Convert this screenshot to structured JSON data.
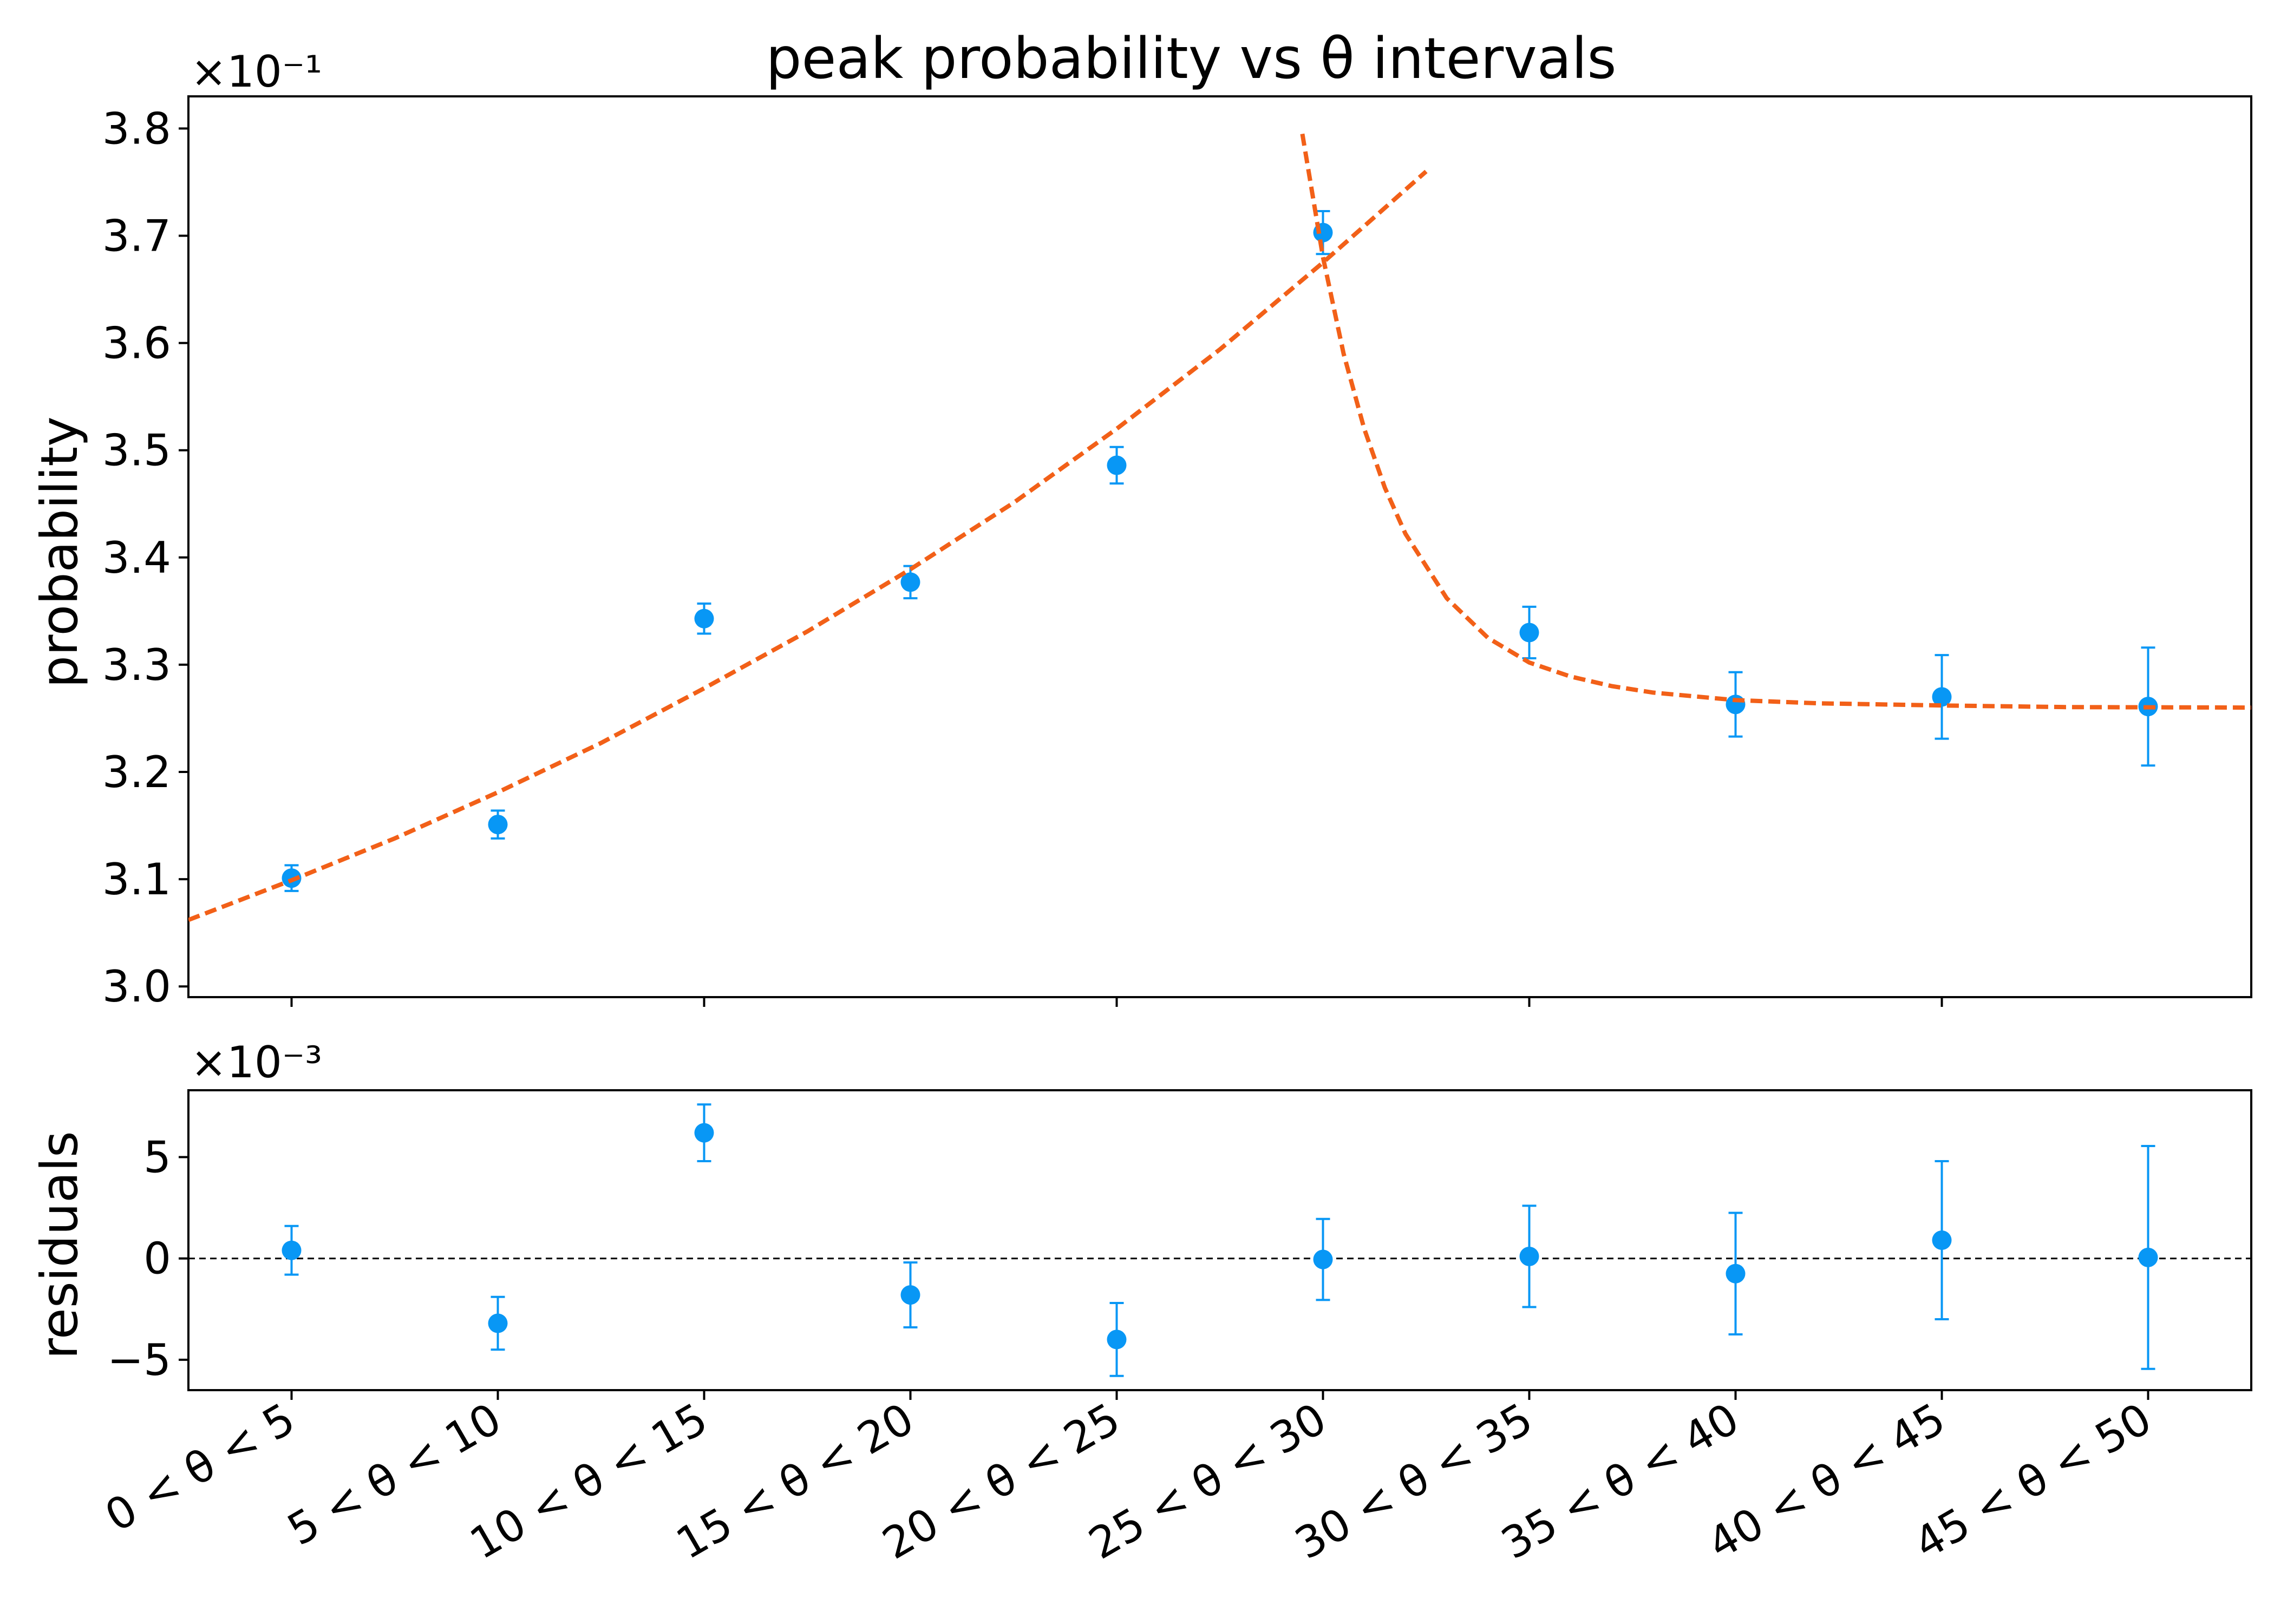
{
  "chart_data": [
    {
      "panel": "main",
      "type": "scatter",
      "title": "peak probability vs θ intervals",
      "ylabel": "probability",
      "y_offset_text": "×10⁻¹",
      "y_scale": 0.1,
      "ylim": [
        2.99,
        3.83
      ],
      "yticks": [
        3.0,
        3.1,
        3.2,
        3.3,
        3.4,
        3.5,
        3.6,
        3.7,
        3.8
      ],
      "ytick_labels": [
        "3.0",
        "3.1",
        "3.2",
        "3.3",
        "3.4",
        "3.5",
        "3.6",
        "3.7",
        "3.8"
      ],
      "xlim": [
        2.5,
        52.5
      ],
      "xticks": [
        5,
        15,
        25,
        35,
        45
      ],
      "grid": false,
      "series": [
        {
          "kind": "errorbar",
          "color": "#0897f5",
          "x": [
            5,
            10,
            15,
            20,
            25,
            30,
            35,
            40,
            45,
            50
          ],
          "y": [
            3.101,
            3.151,
            3.343,
            3.377,
            3.486,
            3.703,
            3.33,
            3.263,
            3.27,
            3.261
          ],
          "yerr": [
            0.012,
            0.013,
            0.014,
            0.015,
            0.017,
            0.02,
            0.024,
            0.03,
            0.039,
            0.055
          ]
        },
        {
          "kind": "fit-line",
          "style": "dashed",
          "color": "#f26018",
          "x": [
            2.5,
            5,
            7.5,
            10,
            12.5,
            15,
            17.5,
            20,
            22.5,
            25,
            27.5,
            30,
            32.5
          ],
          "y": [
            3.062,
            3.099,
            3.138,
            3.181,
            3.227,
            3.278,
            3.331,
            3.389,
            3.451,
            3.52,
            3.594,
            3.675,
            3.76
          ]
        },
        {
          "kind": "fit-line",
          "style": "dashed",
          "color": "#f26018",
          "x": [
            29.5,
            30,
            30.5,
            31,
            31.5,
            32,
            33,
            34,
            35,
            36,
            37,
            38,
            40,
            42,
            45,
            48,
            52.5
          ],
          "y": [
            3.795,
            3.68,
            3.59,
            3.52,
            3.465,
            3.422,
            3.362,
            3.325,
            3.302,
            3.289,
            3.28,
            3.274,
            3.267,
            3.264,
            3.262,
            3.2605,
            3.26
          ]
        }
      ]
    },
    {
      "panel": "residuals",
      "type": "scatter",
      "ylabel": "residuals",
      "y_offset_text": "×10⁻³",
      "y_scale": 0.001,
      "ylim": [
        -6.5,
        8.3
      ],
      "yticks": [
        -5,
        0,
        5
      ],
      "ytick_labels": [
        "−5",
        "0",
        "5"
      ],
      "xlim": [
        2.5,
        52.5
      ],
      "xticks": [
        5,
        10,
        15,
        20,
        25,
        30,
        35,
        40,
        45,
        50
      ],
      "xtick_labels": [
        "0 < θ < 5",
        "5 < θ < 10",
        "10 < θ < 15",
        "15 < θ < 20",
        "20 < θ < 25",
        "25 < θ < 30",
        "30 < θ < 35",
        "35 < θ < 40",
        "40 < θ < 45",
        "45 < θ < 50"
      ],
      "reference_line": {
        "y": 0,
        "style": "dashed",
        "color": "#000000"
      },
      "grid": false,
      "series": [
        {
          "kind": "errorbar",
          "color": "#0897f5",
          "x": [
            5,
            10,
            15,
            20,
            25,
            30,
            35,
            40,
            45,
            50
          ],
          "y": [
            0.4,
            -3.2,
            6.2,
            -1.8,
            -4.0,
            -0.05,
            0.1,
            -0.75,
            0.9,
            0.05
          ],
          "yerr": [
            1.2,
            1.3,
            1.4,
            1.6,
            1.8,
            2.0,
            2.5,
            3.0,
            3.9,
            5.5
          ]
        }
      ]
    }
  ]
}
